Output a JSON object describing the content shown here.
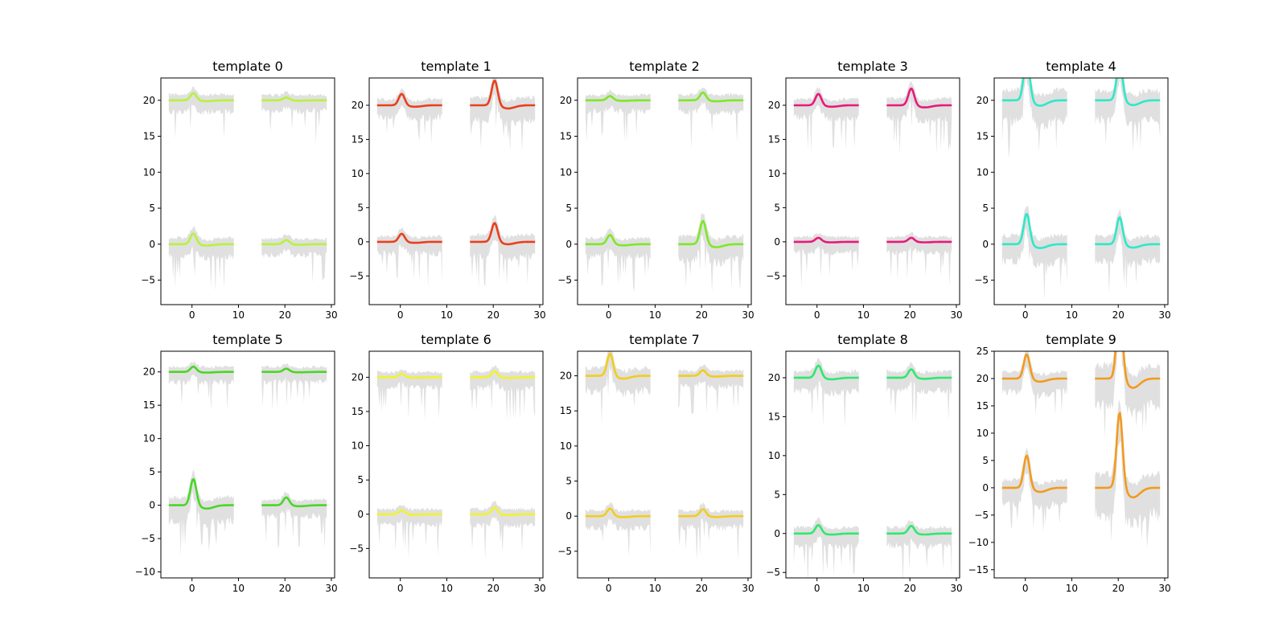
{
  "chart_data": {
    "type": "line",
    "layout": "2x5 small multiples",
    "x_ticks": [
      0,
      10,
      20,
      30
    ],
    "xlim": [
      -6.7,
      30.7
    ],
    "band_color": "#e0e0e0",
    "panels": [
      {
        "title": "template 0",
        "color": "#b8f23a",
        "ylim": [
          -8.4,
          23.1
        ],
        "y_ticks": [
          -5,
          0,
          5,
          10,
          15,
          20
        ],
        "channels": [
          {
            "baseline": 20,
            "dips": [
              -1.0,
              -0.4
            ]
          },
          {
            "baseline": 0,
            "dips": [
              -1.5,
              -0.6
            ]
          }
        ]
      },
      {
        "title": "template 1",
        "color": "#e8401e",
        "ylim": [
          -9.2,
          24.0
        ],
        "y_ticks": [
          -5,
          0,
          5,
          10,
          15,
          20
        ],
        "channels": [
          {
            "baseline": 20,
            "dips": [
              -1.7,
              -3.7
            ]
          },
          {
            "baseline": 0,
            "dips": [
              -1.2,
              -2.8
            ]
          }
        ]
      },
      {
        "title": "template 2",
        "color": "#7ee826",
        "ylim": [
          -8.4,
          23.1
        ],
        "y_ticks": [
          -5,
          0,
          5,
          10,
          15,
          20
        ],
        "channels": [
          {
            "baseline": 20,
            "dips": [
              -0.6,
              -1.1
            ]
          },
          {
            "baseline": 0,
            "dips": [
              -1.3,
              -3.3
            ]
          }
        ]
      },
      {
        "title": "template 3",
        "color": "#e8197a",
        "ylim": [
          -9.2,
          24.0
        ],
        "y_ticks": [
          -5,
          0,
          5,
          10,
          15,
          20
        ],
        "channels": [
          {
            "baseline": 20,
            "dips": [
              -1.7,
              -2.5
            ]
          },
          {
            "baseline": 0,
            "dips": [
              -0.6,
              -0.6
            ]
          }
        ]
      },
      {
        "title": "template 4",
        "color": "#2ee8c8",
        "ylim": [
          -8.4,
          23.1
        ],
        "y_ticks": [
          -5,
          0,
          5,
          10,
          15,
          20
        ],
        "channels": [
          {
            "baseline": 20,
            "dips": [
              -6.0,
              -5.3
            ]
          },
          {
            "baseline": 0,
            "dips": [
              -4.3,
              -3.8
            ]
          }
        ]
      },
      {
        "title": "template 5",
        "color": "#4ad626",
        "ylim": [
          -10.9,
          23.1
        ],
        "y_ticks": [
          -10,
          -5,
          0,
          5,
          10,
          15,
          20
        ],
        "channels": [
          {
            "baseline": 20,
            "dips": [
              -0.8,
              -0.5
            ]
          },
          {
            "baseline": 0,
            "dips": [
              -4.0,
              -1.2
            ]
          }
        ]
      },
      {
        "title": "template 6",
        "color": "#f2f22e",
        "ylim": [
          -9.3,
          23.8
        ],
        "y_ticks": [
          -5,
          0,
          5,
          10,
          15,
          20
        ],
        "channels": [
          {
            "baseline": 20,
            "dips": [
              -0.5,
              -0.9
            ]
          },
          {
            "baseline": 0,
            "dips": [
              -0.6,
              -1.0
            ]
          }
        ]
      },
      {
        "title": "template 7",
        "color": "#f2cc1e",
        "ylim": [
          -8.8,
          23.5
        ],
        "y_ticks": [
          -5,
          0,
          5,
          10,
          15,
          20
        ],
        "channels": [
          {
            "baseline": 20,
            "dips": [
              -3.2,
              -0.8
            ]
          },
          {
            "baseline": 0,
            "dips": [
              -1.1,
              -1.0
            ]
          }
        ]
      },
      {
        "title": "template 8",
        "color": "#2ee86e",
        "ylim": [
          -5.7,
          23.4
        ],
        "y_ticks": [
          -5,
          0,
          5,
          10,
          15,
          20
        ],
        "channels": [
          {
            "baseline": 20,
            "dips": [
              -1.6,
              -1.1
            ]
          },
          {
            "baseline": 0,
            "dips": [
              -1.1,
              -1.0
            ]
          }
        ]
      },
      {
        "title": "template 9",
        "color": "#f29a1e",
        "ylim": [
          -16.5,
          25.0
        ],
        "y_ticks": [
          -15,
          -10,
          -5,
          0,
          5,
          10,
          15,
          20,
          25
        ],
        "channels": [
          {
            "baseline": 20,
            "dips": [
              -4.5,
              -13.5
            ]
          },
          {
            "baseline": 0,
            "dips": [
              -6.0,
              -14.0
            ]
          }
        ]
      }
    ]
  }
}
